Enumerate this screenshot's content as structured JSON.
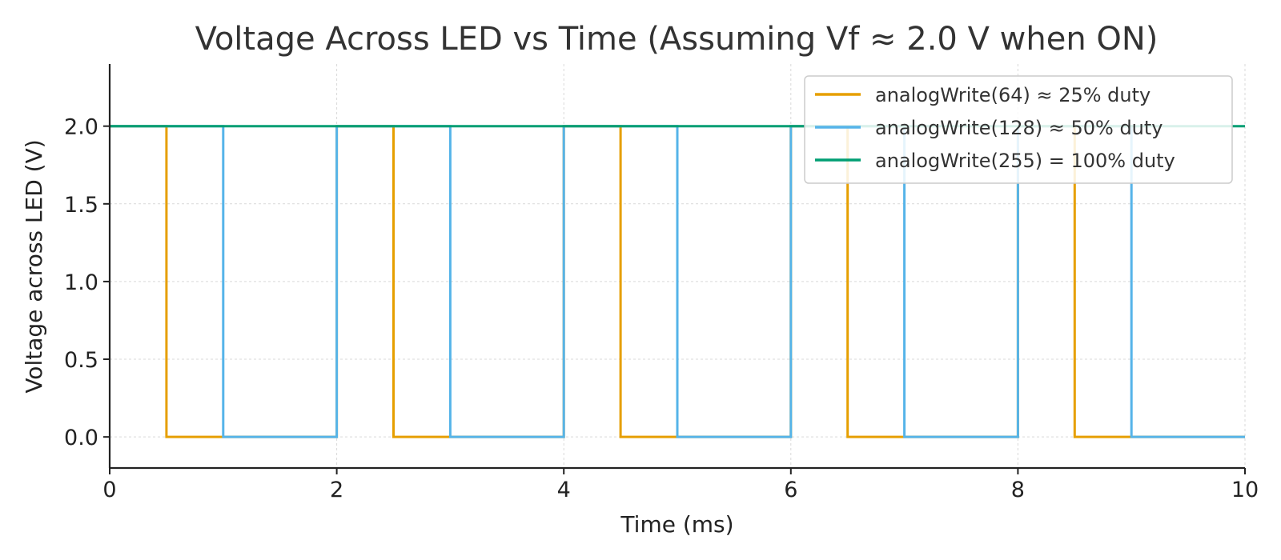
{
  "chart_data": {
    "type": "line",
    "title": "Voltage Across LED vs Time (Assuming Vf ≈ 2.0 V when ON)",
    "xlabel": "Time (ms)",
    "ylabel": "Voltage across LED (V)",
    "xlim": [
      0,
      10
    ],
    "ylim": [
      -0.2,
      2.4
    ],
    "xticks": [
      0,
      2,
      4,
      6,
      8,
      10
    ],
    "xtick_labels": [
      "0",
      "2",
      "4",
      "6",
      "8",
      "10"
    ],
    "yticks": [
      0.0,
      0.5,
      1.0,
      1.5,
      2.0
    ],
    "ytick_labels": [
      "0.0",
      "0.5",
      "1.0",
      "1.5",
      "2.0"
    ],
    "grid": true,
    "legend_position": "top-right",
    "period_ms": 2,
    "series": [
      {
        "name": "analogWrite(64) ≈ 25% duty",
        "color": "#E69F00",
        "duty": 0.25,
        "x": [
          0,
          0.5,
          0.5,
          2,
          2,
          2.5,
          2.5,
          4,
          4,
          4.5,
          4.5,
          6,
          6,
          6.5,
          6.5,
          8,
          8,
          8.5,
          8.5,
          10
        ],
        "y": [
          2,
          2,
          0,
          0,
          2,
          2,
          0,
          0,
          2,
          2,
          0,
          0,
          2,
          2,
          0,
          0,
          2,
          2,
          0,
          0
        ]
      },
      {
        "name": "analogWrite(128) ≈ 50% duty",
        "color": "#56B4E9",
        "duty": 0.5,
        "x": [
          0,
          1,
          1,
          2,
          2,
          3,
          3,
          4,
          4,
          5,
          5,
          6,
          6,
          7,
          7,
          8,
          8,
          9,
          9,
          10
        ],
        "y": [
          2,
          2,
          0,
          0,
          2,
          2,
          0,
          0,
          2,
          2,
          0,
          0,
          2,
          2,
          0,
          0,
          2,
          2,
          0,
          0
        ]
      },
      {
        "name": "analogWrite(255) = 100% duty",
        "color": "#009E73",
        "duty": 1.0,
        "x": [
          0,
          10
        ],
        "y": [
          2,
          2
        ]
      }
    ]
  }
}
